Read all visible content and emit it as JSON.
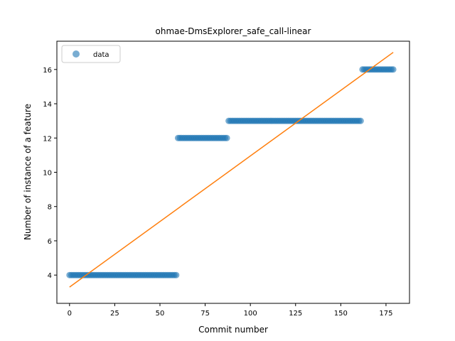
{
  "chart_data": {
    "type": "scatter",
    "title": "ohmae-DmsExplorer_safe_call-linear",
    "xlabel": "Commit number",
    "ylabel": "Number of instance of a feature",
    "xlim": [
      -7,
      188
    ],
    "ylim": [
      2.35,
      17.65
    ],
    "xticks": [
      0,
      25,
      50,
      75,
      100,
      125,
      150,
      175
    ],
    "yticks": [
      4,
      6,
      8,
      10,
      12,
      14,
      16
    ],
    "grid": false,
    "legend": {
      "position": "top-left",
      "entries": [
        "data"
      ]
    },
    "series": [
      {
        "name": "data",
        "kind": "points",
        "color": "#1f77b4",
        "steps": [
          {
            "x_start": 0,
            "x_end": 59,
            "y": 4
          },
          {
            "x_start": 60,
            "x_end": 87,
            "y": 12
          },
          {
            "x_start": 88,
            "x_end": 161,
            "y": 13
          },
          {
            "x_start": 162,
            "x_end": 179,
            "y": 16
          }
        ]
      },
      {
        "kind": "line",
        "color": "#ff7f0e",
        "x": [
          0,
          179
        ],
        "y": [
          3.3,
          17.0
        ]
      }
    ]
  }
}
